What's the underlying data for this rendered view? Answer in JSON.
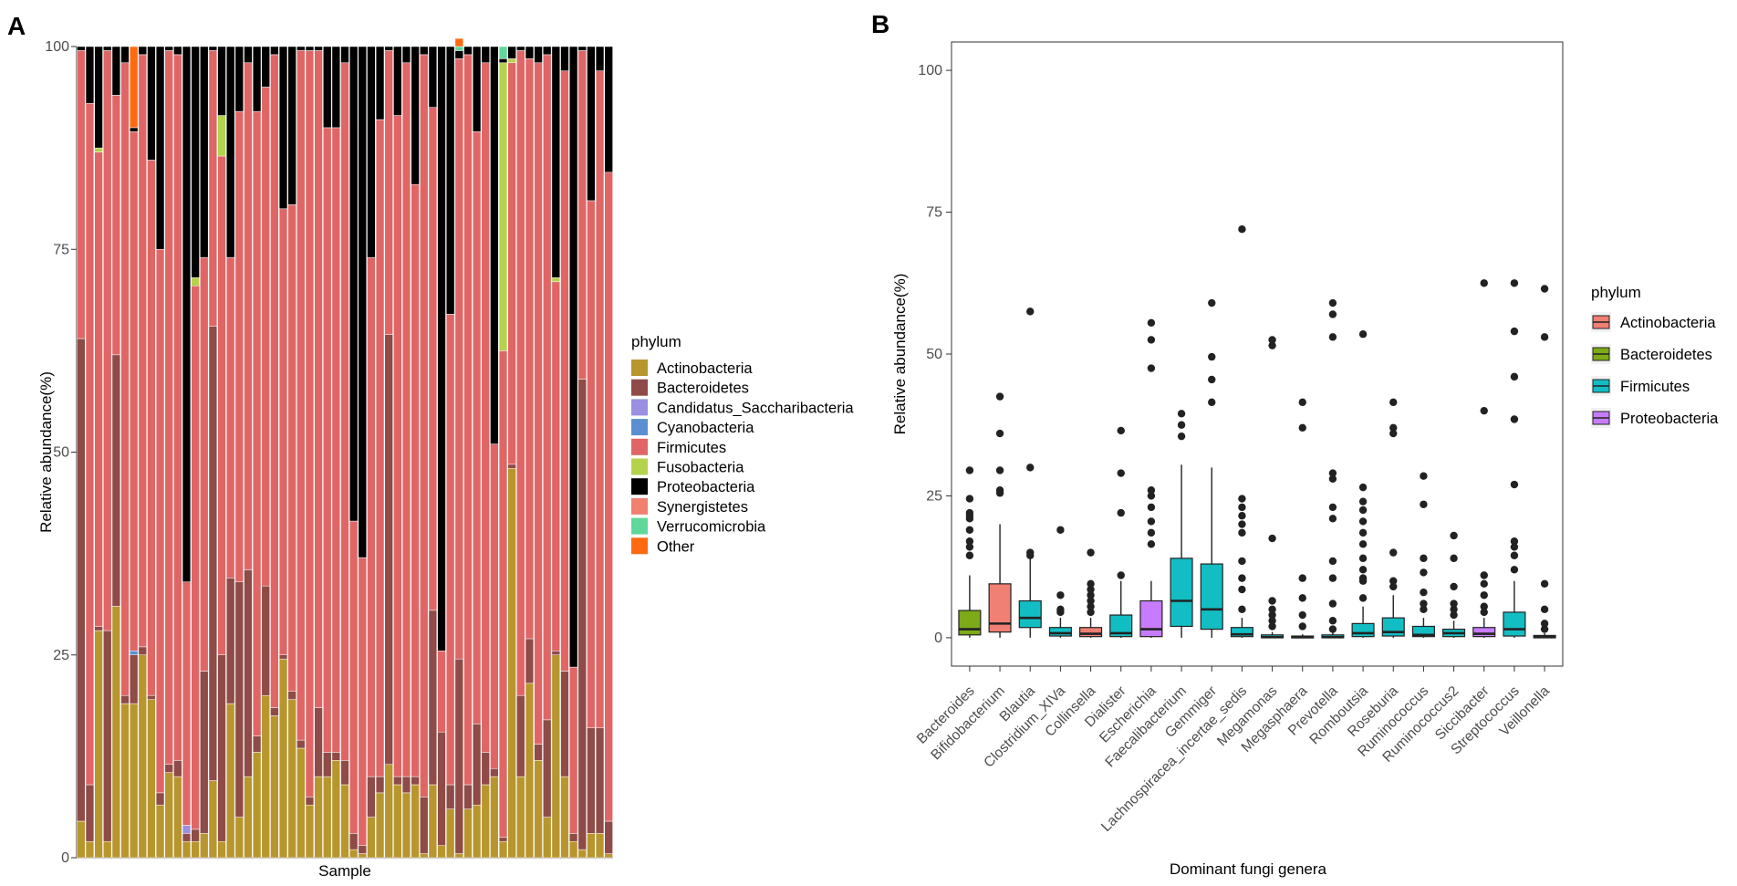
{
  "panels": {
    "a_label": "A",
    "b_label": "B"
  },
  "chart_data": [
    {
      "type": "bar",
      "stacked": true,
      "title": "",
      "xlabel": "Sample",
      "ylabel": "Relative abundance(%)",
      "ylim": [
        0,
        100
      ],
      "yticks": [
        0,
        25,
        50,
        75,
        100
      ],
      "legend_title": "phylum",
      "legend_position": "right",
      "series": [
        {
          "name": "Actinobacteria",
          "color": "#B8962E"
        },
        {
          "name": "Bacteroidetes",
          "color": "#8E4B47"
        },
        {
          "name": "Candidatus_Saccharibacteria",
          "color": "#9A8FE0"
        },
        {
          "name": "Cyanobacteria",
          "color": "#5B8FD0"
        },
        {
          "name": "Firmicutes",
          "color": "#E06666"
        },
        {
          "name": "Fusobacteria",
          "color": "#B5D24C"
        },
        {
          "name": "Proteobacteria",
          "color": "#000000"
        },
        {
          "name": "Synergistetes",
          "color": "#F08070"
        },
        {
          "name": "Verrucomicrobia",
          "color": "#5FD89A"
        },
        {
          "name": "Other",
          "color": "#FF6A10"
        }
      ],
      "samples": [
        {
          "Proteobacteria": 0.5,
          "Firmicutes": 35.5,
          "Bacteroidetes": 59.5,
          "Actinobacteria": 4.5
        },
        {
          "Proteobacteria": 7,
          "Firmicutes": 84,
          "Bacteroidetes": 7,
          "Actinobacteria": 2
        },
        {
          "Proteobacteria": 12.5,
          "Fusobacteria": 0.5,
          "Firmicutes": 58.5,
          "Bacteroidetes": 0.5,
          "Actinobacteria": 28
        },
        {
          "Proteobacteria": 0.5,
          "Firmicutes": 71.5,
          "Bacteroidetes": 26,
          "Actinobacteria": 2
        },
        {
          "Proteobacteria": 6,
          "Firmicutes": 32,
          "Bacteroidetes": 31,
          "Actinobacteria": 31
        },
        {
          "Proteobacteria": 2,
          "Firmicutes": 78,
          "Bacteroidetes": 1,
          "Actinobacteria": 19
        },
        {
          "Proteobacteria": 0.5,
          "Other": 10,
          "Cyanobacteria": 0.5,
          "Firmicutes": 64,
          "Bacteroidetes": 6,
          "Actinobacteria": 19
        },
        {
          "Proteobacteria": 1,
          "Firmicutes": 73,
          "Bacteroidetes": 1,
          "Actinobacteria": 25
        },
        {
          "Proteobacteria": 14,
          "Firmicutes": 66,
          "Bacteroidetes": 0.5,
          "Actinobacteria": 19.5
        },
        {
          "Proteobacteria": 25,
          "Firmicutes": 67,
          "Bacteroidetes": 1.5,
          "Actinobacteria": 6.5
        },
        {
          "Proteobacteria": 0.5,
          "Firmicutes": 88,
          "Bacteroidetes": 1,
          "Actinobacteria": 10.5
        },
        {
          "Proteobacteria": 1,
          "Firmicutes": 87,
          "Bacteroidetes": 2,
          "Actinobacteria": 10
        },
        {
          "Proteobacteria": 66,
          "Firmicutes": 30,
          "Bacteroidetes": 1,
          "Candidatus_Saccharibacteria": 1,
          "Actinobacteria": 2
        },
        {
          "Proteobacteria": 28.5,
          "Fusobacteria": 1,
          "Firmicutes": 67,
          "Bacteroidetes": 1.5,
          "Actinobacteria": 2
        },
        {
          "Proteobacteria": 26,
          "Firmicutes": 51,
          "Bacteroidetes": 20,
          "Actinobacteria": 3
        },
        {
          "Proteobacteria": 0.5,
          "Firmicutes": 34,
          "Bacteroidetes": 56,
          "Actinobacteria": 9.5
        },
        {
          "Proteobacteria": 8.5,
          "Fusobacteria": 5,
          "Firmicutes": 61.5,
          "Bacteroidetes": 23,
          "Actinobacteria": 2
        },
        {
          "Proteobacteria": 26,
          "Firmicutes": 39.5,
          "Bacteroidetes": 15.5,
          "Actinobacteria": 19
        },
        {
          "Proteobacteria": 8,
          "Firmicutes": 58,
          "Bacteroidetes": 29,
          "Actinobacteria": 5
        },
        {
          "Proteobacteria": 2,
          "Firmicutes": 62.5,
          "Bacteroidetes": 25.5,
          "Actinobacteria": 10
        },
        {
          "Proteobacteria": 8,
          "Firmicutes": 77,
          "Bacteroidetes": 2,
          "Actinobacteria": 13
        },
        {
          "Proteobacteria": 5,
          "Firmicutes": 61.5,
          "Bacteroidetes": 13.5,
          "Actinobacteria": 20
        },
        {
          "Proteobacteria": 1,
          "Firmicutes": 80.5,
          "Bacteroidetes": 1,
          "Actinobacteria": 17.5
        },
        {
          "Proteobacteria": 20,
          "Firmicutes": 55,
          "Bacteroidetes": 0.5,
          "Actinobacteria": 24.5
        },
        {
          "Proteobacteria": 19.5,
          "Firmicutes": 60,
          "Bacteroidetes": 1,
          "Actinobacteria": 19.5
        },
        {
          "Proteobacteria": 0.5,
          "Firmicutes": 85,
          "Bacteroidetes": 1,
          "Actinobacteria": 13.5
        },
        {
          "Proteobacteria": 0.5,
          "Firmicutes": 92,
          "Bacteroidetes": 1,
          "Actinobacteria": 6.5
        },
        {
          "Proteobacteria": 0.5,
          "Firmicutes": 81,
          "Bacteroidetes": 8.5,
          "Actinobacteria": 10
        },
        {
          "Proteobacteria": 10,
          "Firmicutes": 77,
          "Bacteroidetes": 3,
          "Actinobacteria": 10
        },
        {
          "Proteobacteria": 10,
          "Firmicutes": 77,
          "Bacteroidetes": 1,
          "Actinobacteria": 12
        },
        {
          "Proteobacteria": 2,
          "Firmicutes": 86,
          "Bacteroidetes": 3,
          "Actinobacteria": 9
        },
        {
          "Proteobacteria": 58.5,
          "Firmicutes": 38.5,
          "Bacteroidetes": 2,
          "Actinobacteria": 1
        },
        {
          "Proteobacteria": 63,
          "Firmicutes": 35.5,
          "Bacteroidetes": 1,
          "Actinobacteria": 0.5
        },
        {
          "Proteobacteria": 26,
          "Firmicutes": 64,
          "Bacteroidetes": 5,
          "Actinobacteria": 5
        },
        {
          "Proteobacteria": 9,
          "Firmicutes": 81,
          "Bacteroidetes": 2,
          "Actinobacteria": 8
        },
        {
          "Proteobacteria": 0.5,
          "Firmicutes": 35,
          "Bacteroidetes": 53,
          "Actinobacteria": 11.5
        },
        {
          "Proteobacteria": 8.5,
          "Firmicutes": 81.5,
          "Bacteroidetes": 1,
          "Actinobacteria": 9
        },
        {
          "Proteobacteria": 2,
          "Firmicutes": 88,
          "Bacteroidetes": 2,
          "Actinobacteria": 8
        },
        {
          "Proteobacteria": 17,
          "Firmicutes": 73,
          "Bacteroidetes": 1,
          "Actinobacteria": 9
        },
        {
          "Proteobacteria": 1,
          "Firmicutes": 91.5,
          "Bacteroidetes": 7,
          "Actinobacteria": 0.5
        },
        {
          "Proteobacteria": 7.5,
          "Firmicutes": 62,
          "Bacteroidetes": 21.5,
          "Actinobacteria": 9
        },
        {
          "Proteobacteria": 74.5,
          "Firmicutes": 10,
          "Bacteroidetes": 14,
          "Actinobacteria": 1.5
        },
        {
          "Proteobacteria": 33,
          "Firmicutes": 58,
          "Bacteroidetes": 3,
          "Actinobacteria": 6
        },
        {
          "Proteobacteria": 1,
          "Other": 1,
          "Verrucomicrobia": 0.5,
          "Firmicutes": 74,
          "Bacteroidetes": 24,
          "Actinobacteria": 0.5
        },
        {
          "Proteobacteria": 1,
          "Firmicutes": 90,
          "Bacteroidetes": 3,
          "Actinobacteria": 6
        },
        {
          "Proteobacteria": 10.5,
          "Firmicutes": 73,
          "Bacteroidetes": 10,
          "Actinobacteria": 6.5
        },
        {
          "Proteobacteria": 2,
          "Firmicutes": 85,
          "Bacteroidetes": 4,
          "Actinobacteria": 9
        },
        {
          "Proteobacteria": 49,
          "Firmicutes": 40,
          "Bacteroidetes": 1,
          "Actinobacteria": 10
        },
        {
          "Proteobacteria": 0.5,
          "Verrucomicrobia": 1.5,
          "Firmicutes": 60,
          "Bacteroidetes": 0.5,
          "Fusobacteria": 35.5,
          "Actinobacteria": 2
        },
        {
          "Proteobacteria": 1.5,
          "Firmicutes": 49.5,
          "Fusobacteria": 0.5,
          "Bacteroidetes": 0.5,
          "Actinobacteria": 48
        },
        {
          "Proteobacteria": 0.5,
          "Firmicutes": 79.5,
          "Bacteroidetes": 10,
          "Actinobacteria": 10
        },
        {
          "Proteobacteria": 1.5,
          "Firmicutes": 71.5,
          "Bacteroidetes": 5.5,
          "Actinobacteria": 21.5
        },
        {
          "Proteobacteria": 2,
          "Firmicutes": 84,
          "Bacteroidetes": 2,
          "Actinobacteria": 12
        },
        {
          "Proteobacteria": 1,
          "Firmicutes": 82,
          "Bacteroidetes": 12,
          "Actinobacteria": 5
        },
        {
          "Proteobacteria": 28.5,
          "Firmicutes": 45.5,
          "Fusobacteria": 0.5,
          "Bacteroidetes": 0.5,
          "Actinobacteria": 25
        },
        {
          "Proteobacteria": 3,
          "Firmicutes": 74,
          "Bacteroidetes": 13,
          "Actinobacteria": 10
        },
        {
          "Proteobacteria": 76.5,
          "Firmicutes": 20.5,
          "Bacteroidetes": 1,
          "Actinobacteria": 2
        },
        {
          "Proteobacteria": 0.5,
          "Firmicutes": 40.5,
          "Bacteroidetes": 58,
          "Actinobacteria": 1
        },
        {
          "Proteobacteria": 19,
          "Firmicutes": 65,
          "Bacteroidetes": 13,
          "Actinobacteria": 3
        },
        {
          "Proteobacteria": 3,
          "Firmicutes": 81,
          "Bacteroidetes": 13,
          "Actinobacteria": 3
        },
        {
          "Proteobacteria": 15.5,
          "Firmicutes": 80,
          "Bacteroidetes": 4,
          "Actinobacteria": 0.5
        }
      ]
    },
    {
      "type": "boxplot",
      "title": "",
      "xlabel": "Dominant fungi genera",
      "ylabel": "Relative abundance(%)",
      "ylim": [
        -5,
        105
      ],
      "yticks": [
        0,
        25,
        50,
        75,
        100
      ],
      "legend_title": "phylum",
      "legend_position": "right",
      "legend": [
        {
          "name": "Actinobacteria",
          "color": "#F07F74"
        },
        {
          "name": "Bacteroidetes",
          "color": "#7DAA17"
        },
        {
          "name": "Firmicutes",
          "color": "#12BEC4"
        },
        {
          "name": "Proteobacteria",
          "color": "#C77CFF"
        }
      ],
      "boxes": [
        {
          "genus": "Bacteroides",
          "phylum": "Bacteroidetes",
          "min": 0,
          "q1": 0.5,
          "median": 1.5,
          "q3": 4.8,
          "max": 11,
          "outliers": [
            14.5,
            16,
            17,
            19,
            21,
            21.5,
            22,
            24.5,
            29.5
          ]
        },
        {
          "genus": "Bifidobacterium",
          "phylum": "Actinobacteria",
          "min": 0,
          "q1": 1,
          "median": 2.5,
          "q3": 9.5,
          "max": 20,
          "outliers": [
            25.5,
            26,
            29.5,
            36,
            42.5
          ]
        },
        {
          "genus": "Blautia",
          "phylum": "Firmicutes",
          "min": 0,
          "q1": 1.8,
          "median": 3.5,
          "q3": 6.5,
          "max": 14,
          "outliers": [
            14.5,
            15,
            30,
            57.5
          ]
        },
        {
          "genus": "Clostridium_XIVa",
          "phylum": "Firmicutes",
          "min": 0,
          "q1": 0.3,
          "median": 0.8,
          "q3": 1.8,
          "max": 3.5,
          "outliers": [
            4.5,
            5,
            7.5,
            19
          ]
        },
        {
          "genus": "Collinsella",
          "phylum": "Actinobacteria",
          "min": 0,
          "q1": 0.2,
          "median": 0.7,
          "q3": 1.8,
          "max": 3.5,
          "outliers": [
            4.5,
            5.5,
            6.5,
            7.5,
            8.5,
            9.5,
            15
          ]
        },
        {
          "genus": "Dialister",
          "phylum": "Firmicutes",
          "min": 0,
          "q1": 0.2,
          "median": 0.8,
          "q3": 4,
          "max": 10,
          "outliers": [
            11,
            22,
            29,
            36.5
          ]
        },
        {
          "genus": "Escherichia",
          "phylum": "Proteobacteria",
          "min": 0,
          "q1": 0.2,
          "median": 1.5,
          "q3": 6.5,
          "max": 10,
          "outliers": [
            16.5,
            18.5,
            20.5,
            23,
            25,
            26,
            47.5,
            52.5,
            55.5
          ]
        },
        {
          "genus": "Faecalibacterium",
          "phylum": "Firmicutes",
          "min": 0,
          "q1": 2,
          "median": 6.5,
          "q3": 14,
          "max": 30.5,
          "outliers": [
            35.5,
            37.5,
            39.5
          ]
        },
        {
          "genus": "Gemmiger",
          "phylum": "Firmicutes",
          "min": 0,
          "q1": 1.5,
          "median": 5,
          "q3": 13,
          "max": 30,
          "outliers": [
            41.5,
            45.5,
            49.5,
            59
          ]
        },
        {
          "genus": "Lachnospiracea_incertae_sedis",
          "phylum": "Firmicutes",
          "min": 0,
          "q1": 0.2,
          "median": 0.6,
          "q3": 1.8,
          "max": 3.5,
          "outliers": [
            5,
            8.5,
            10.5,
            13.5,
            18.5,
            20,
            21.5,
            23,
            24.5,
            72
          ]
        },
        {
          "genus": "Megamonas",
          "phylum": "Firmicutes",
          "min": 0,
          "q1": 0,
          "median": 0.1,
          "q3": 0.5,
          "max": 1,
          "outliers": [
            2,
            3,
            4,
            5,
            6.5,
            17.5,
            51.5,
            52.5
          ]
        },
        {
          "genus": "Megasphaera",
          "phylum": "Firmicutes",
          "min": 0,
          "q1": 0,
          "median": 0.1,
          "q3": 0.3,
          "max": 0.6,
          "outliers": [
            2,
            4,
            7,
            10.5,
            37,
            41.5
          ]
        },
        {
          "genus": "Prevotella",
          "phylum": "Firmicutes",
          "min": 0,
          "q1": 0,
          "median": 0.1,
          "q3": 0.5,
          "max": 1,
          "outliers": [
            1.5,
            3,
            6,
            10.5,
            13.5,
            21,
            23,
            28,
            29,
            53,
            57,
            59
          ]
        },
        {
          "genus": "Romboutsia",
          "phylum": "Firmicutes",
          "min": 0,
          "q1": 0.2,
          "median": 0.8,
          "q3": 2.5,
          "max": 5.5,
          "outliers": [
            7,
            10,
            10.5,
            12,
            14,
            16.5,
            18.5,
            20.5,
            22.5,
            24,
            26.5,
            53.5
          ]
        },
        {
          "genus": "Roseburia",
          "phylum": "Firmicutes",
          "min": 0,
          "q1": 0.3,
          "median": 1,
          "q3": 3.5,
          "max": 7.5,
          "outliers": [
            9,
            10,
            15,
            36,
            37,
            41.5
          ]
        },
        {
          "genus": "Ruminococcus",
          "phylum": "Firmicutes",
          "min": 0,
          "q1": 0.2,
          "median": 0.5,
          "q3": 2,
          "max": 3.5,
          "outliers": [
            5,
            6,
            8,
            11.5,
            14,
            23.5,
            28.5
          ]
        },
        {
          "genus": "Ruminococcus2",
          "phylum": "Firmicutes",
          "min": 0,
          "q1": 0.2,
          "median": 0.8,
          "q3": 1.5,
          "max": 3,
          "outliers": [
            4,
            5,
            6,
            9,
            14,
            18
          ]
        },
        {
          "genus": "Siccibacter",
          "phylum": "Proteobacteria",
          "min": 0,
          "q1": 0.2,
          "median": 0.7,
          "q3": 1.8,
          "max": 3.5,
          "outliers": [
            4.5,
            5.5,
            7.5,
            9.5,
            11,
            40,
            62.5
          ]
        },
        {
          "genus": "Streptococcus",
          "phylum": "Firmicutes",
          "min": 0,
          "q1": 0.3,
          "median": 1.5,
          "q3": 4.5,
          "max": 10,
          "outliers": [
            12,
            14.5,
            16,
            17,
            27,
            38.5,
            46,
            54,
            62.5
          ]
        },
        {
          "genus": "Veillonella",
          "phylum": "Firmicutes",
          "min": 0,
          "q1": 0,
          "median": 0.1,
          "q3": 0.4,
          "max": 0.8,
          "outliers": [
            1.5,
            2.5,
            5,
            9.5,
            53,
            61.5
          ]
        }
      ]
    }
  ]
}
